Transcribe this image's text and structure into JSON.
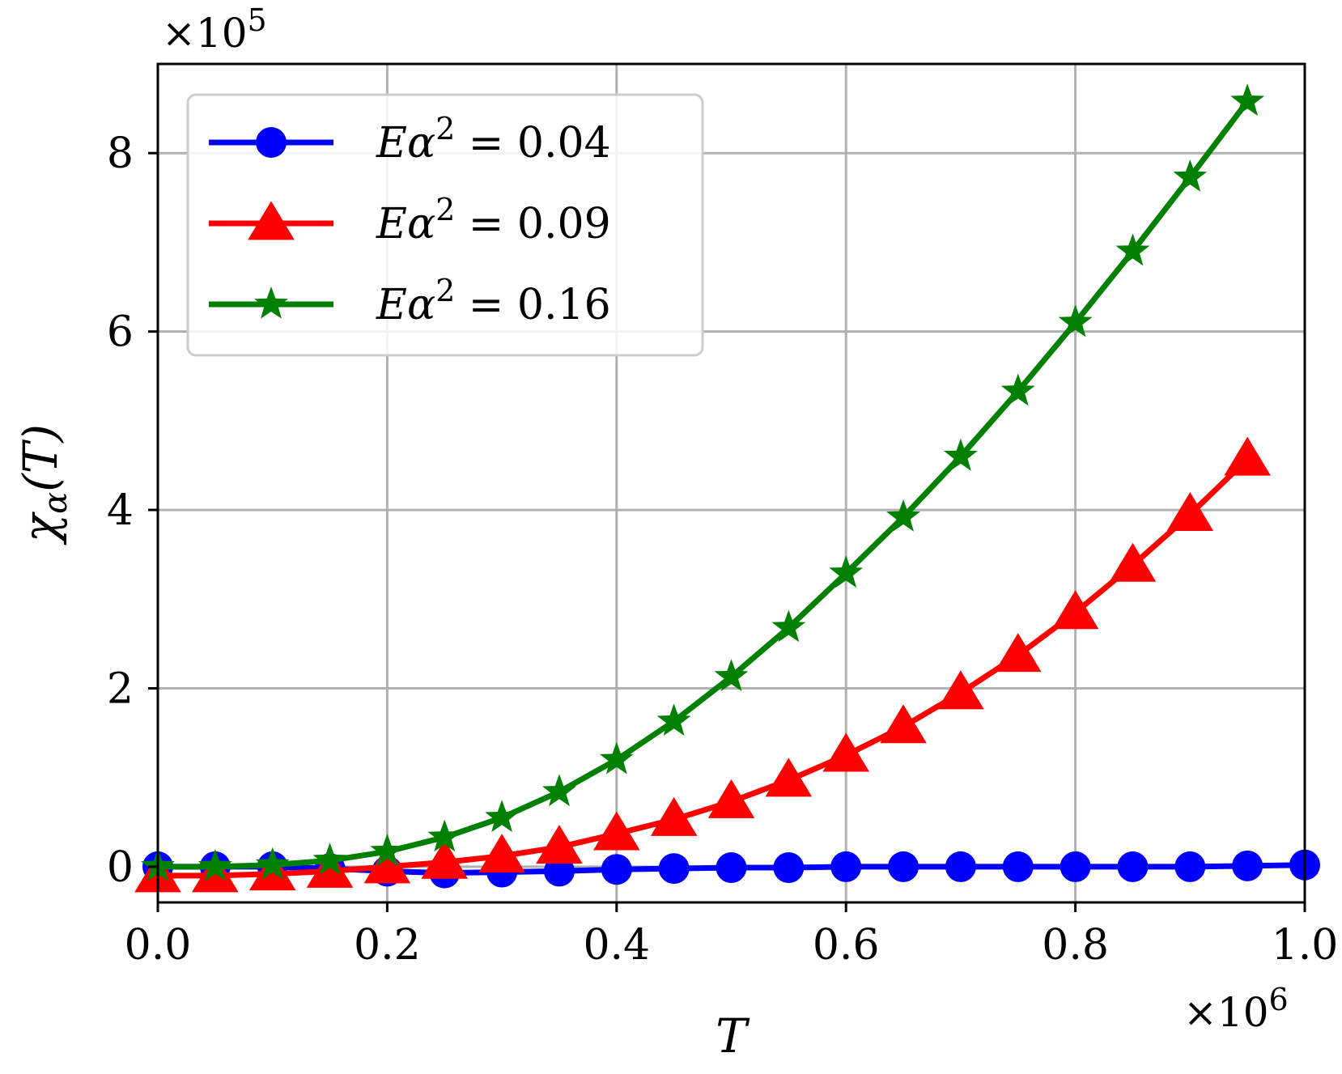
{
  "chart_data": {
    "type": "line",
    "title": "",
    "xlabel": "T",
    "ylabel": "χα(T)",
    "x_offset_label": "×10^6",
    "y_offset_label": "×10^5",
    "xlim": [
      0.0,
      1.0
    ],
    "ylim": [
      -0.4,
      9.0
    ],
    "x_ticks": [
      "0.0",
      "0.2",
      "0.4",
      "0.6",
      "0.8",
      "1.0"
    ],
    "x_tick_values": [
      0.0,
      0.2,
      0.4,
      0.6,
      0.8,
      1.0
    ],
    "y_ticks": [
      "0",
      "2",
      "4",
      "6",
      "8"
    ],
    "y_tick_values": [
      0,
      2,
      4,
      6,
      8
    ],
    "grid": true,
    "legend_position": "top-left",
    "x": [
      0.0,
      0.05,
      0.1,
      0.15,
      0.2,
      0.25,
      0.3,
      0.35,
      0.4,
      0.45,
      0.5,
      0.55,
      0.6,
      0.65,
      0.7,
      0.75,
      0.8,
      0.85,
      0.9,
      0.95,
      1.0
    ],
    "series": [
      {
        "name": "Eα² = 0.04",
        "legend_text": {
          "lhs": "Eα",
          "sup": "2",
          "rhs": " = 0.04"
        },
        "color": "#0000ff",
        "marker": "circle",
        "values": [
          0.0,
          0.0,
          0.0,
          -0.02,
          -0.05,
          -0.07,
          -0.06,
          -0.05,
          -0.03,
          -0.02,
          -0.01,
          -0.01,
          0.0,
          0.0,
          0.0,
          0.0,
          0.0,
          0.0,
          0.0,
          0.01,
          0.02
        ]
      },
      {
        "name": "Eα² = 0.09",
        "legend_text": {
          "lhs": "Eα",
          "sup": "2",
          "rhs": " = 0.09"
        },
        "color": "#ff0000",
        "marker": "triangle",
        "values": [
          -0.1,
          -0.1,
          -0.08,
          -0.05,
          0.0,
          0.05,
          0.12,
          0.22,
          0.37,
          0.53,
          0.73,
          0.97,
          1.25,
          1.57,
          1.95,
          2.37,
          2.85,
          3.38,
          3.95,
          4.57,
          null
        ]
      },
      {
        "name": "Eα² = 0.16",
        "legend_text": {
          "lhs": "Eα",
          "sup": "2",
          "rhs": " = 0.16"
        },
        "color": "#008000",
        "marker": "star",
        "values": [
          0.0,
          0.0,
          0.02,
          0.07,
          0.17,
          0.33,
          0.55,
          0.84,
          1.2,
          1.63,
          2.13,
          2.68,
          3.29,
          3.92,
          4.6,
          5.33,
          6.1,
          6.9,
          7.73,
          8.58,
          null
        ]
      }
    ]
  }
}
